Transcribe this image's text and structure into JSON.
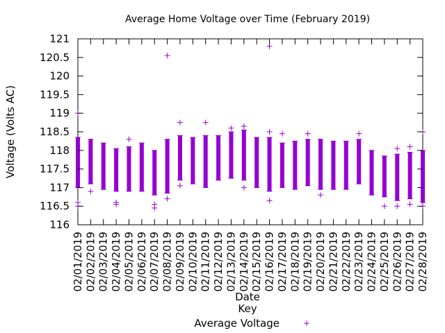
{
  "chart_data": {
    "type": "scatter",
    "title": "Average Home Voltage over Time (February 2019)",
    "xlabel": "Date",
    "ylabel": "Voltage (Volts AC)",
    "ylim": [
      116,
      121
    ],
    "yticks": [
      "116",
      "116.5",
      "117",
      "117.5",
      "118",
      "118.5",
      "119",
      "119.5",
      "120",
      "120.5",
      "121"
    ],
    "legend": {
      "title": "Key",
      "entries": [
        "Average Voltage"
      ],
      "position": "bottom-center"
    },
    "color": "#9400d3",
    "marker": "+",
    "grid": false,
    "categories": [
      "02/01/2019",
      "02/02/2019",
      "02/03/2019",
      "02/04/2019",
      "02/05/2019",
      "02/06/2019",
      "02/07/2019",
      "02/08/2019",
      "02/09/2019",
      "02/10/2019",
      "02/11/2019",
      "02/12/2019",
      "02/13/2019",
      "02/14/2019",
      "02/15/2019",
      "02/16/2019",
      "02/17/2019",
      "02/18/2019",
      "02/19/2019",
      "02/20/2019",
      "02/21/2019",
      "02/22/2019",
      "02/23/2019",
      "02/24/2019",
      "02/25/2019",
      "02/26/2019",
      "02/27/2019",
      "02/28/2019"
    ],
    "daily_range": [
      {
        "date": "02/01/2019",
        "low": 117.0,
        "high": 118.35
      },
      {
        "date": "02/02/2019",
        "low": 117.1,
        "high": 118.3
      },
      {
        "date": "02/03/2019",
        "low": 116.95,
        "high": 118.2
      },
      {
        "date": "02/04/2019",
        "low": 116.9,
        "high": 118.05
      },
      {
        "date": "02/05/2019",
        "low": 116.9,
        "high": 118.1
      },
      {
        "date": "02/06/2019",
        "low": 116.9,
        "high": 118.2
      },
      {
        "date": "02/07/2019",
        "low": 116.8,
        "high": 118.0
      },
      {
        "date": "02/08/2019",
        "low": 116.85,
        "high": 118.3
      },
      {
        "date": "02/09/2019",
        "low": 117.2,
        "high": 118.4
      },
      {
        "date": "02/10/2019",
        "low": 117.1,
        "high": 118.35
      },
      {
        "date": "02/11/2019",
        "low": 117.0,
        "high": 118.4
      },
      {
        "date": "02/12/2019",
        "low": 117.2,
        "high": 118.4
      },
      {
        "date": "02/13/2019",
        "low": 117.25,
        "high": 118.5
      },
      {
        "date": "02/14/2019",
        "low": 117.2,
        "high": 118.55
      },
      {
        "date": "02/15/2019",
        "low": 117.0,
        "high": 118.35
      },
      {
        "date": "02/16/2019",
        "low": 116.9,
        "high": 118.35
      },
      {
        "date": "02/17/2019",
        "low": 117.0,
        "high": 118.2
      },
      {
        "date": "02/18/2019",
        "low": 116.95,
        "high": 118.25
      },
      {
        "date": "02/19/2019",
        "low": 117.05,
        "high": 118.3
      },
      {
        "date": "02/20/2019",
        "low": 116.95,
        "high": 118.3
      },
      {
        "date": "02/21/2019",
        "low": 116.95,
        "high": 118.25
      },
      {
        "date": "02/22/2019",
        "low": 116.95,
        "high": 118.25
      },
      {
        "date": "02/23/2019",
        "low": 117.1,
        "high": 118.3
      },
      {
        "date": "02/24/2019",
        "low": 116.8,
        "high": 118.0
      },
      {
        "date": "02/25/2019",
        "low": 116.75,
        "high": 117.85
      },
      {
        "date": "02/26/2019",
        "low": 116.65,
        "high": 117.9
      },
      {
        "date": "02/27/2019",
        "low": 116.7,
        "high": 117.95
      },
      {
        "date": "02/28/2019",
        "low": 116.6,
        "high": 118.0
      }
    ],
    "outliers": [
      {
        "date": "02/01/2019",
        "value": 119.0
      },
      {
        "date": "02/01/2019",
        "value": 116.5
      },
      {
        "date": "02/01/2019",
        "value": 116.6
      },
      {
        "date": "02/02/2019",
        "value": 116.9
      },
      {
        "date": "02/04/2019",
        "value": 116.6
      },
      {
        "date": "02/04/2019",
        "value": 116.55
      },
      {
        "date": "02/05/2019",
        "value": 118.3
      },
      {
        "date": "02/07/2019",
        "value": 116.45
      },
      {
        "date": "02/07/2019",
        "value": 116.55
      },
      {
        "date": "02/08/2019",
        "value": 120.55
      },
      {
        "date": "02/08/2019",
        "value": 116.7
      },
      {
        "date": "02/09/2019",
        "value": 118.75
      },
      {
        "date": "02/09/2019",
        "value": 117.05
      },
      {
        "date": "02/11/2019",
        "value": 118.75
      },
      {
        "date": "02/13/2019",
        "value": 118.6
      },
      {
        "date": "02/14/2019",
        "value": 118.65
      },
      {
        "date": "02/14/2019",
        "value": 117.0
      },
      {
        "date": "02/16/2019",
        "value": 120.8
      },
      {
        "date": "02/16/2019",
        "value": 118.5
      },
      {
        "date": "02/16/2019",
        "value": 116.65
      },
      {
        "date": "02/17/2019",
        "value": 118.45
      },
      {
        "date": "02/19/2019",
        "value": 118.45
      },
      {
        "date": "02/20/2019",
        "value": 116.8
      },
      {
        "date": "02/23/2019",
        "value": 118.45
      },
      {
        "date": "02/25/2019",
        "value": 116.5
      },
      {
        "date": "02/26/2019",
        "value": 118.05
      },
      {
        "date": "02/26/2019",
        "value": 116.5
      },
      {
        "date": "02/27/2019",
        "value": 118.1
      },
      {
        "date": "02/27/2019",
        "value": 116.55
      },
      {
        "date": "02/28/2019",
        "value": 118.5
      },
      {
        "date": "02/28/2019",
        "value": 116.5
      }
    ]
  }
}
